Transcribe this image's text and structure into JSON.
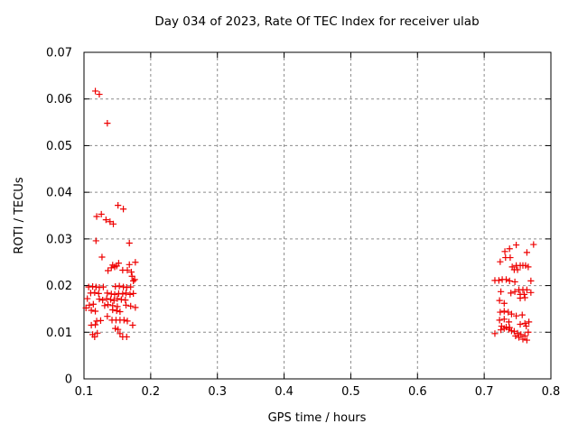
{
  "figure": {
    "background": "#ffffff",
    "axis_color": "#000000",
    "grid_color": "#8c8c8c",
    "marker_color": "#ee0000"
  },
  "chart_data": {
    "type": "scatter",
    "title": "Day 034 of 2023, Rate Of TEC Index for receiver ulab",
    "xlabel": "GPS time / hours",
    "ylabel": "ROTI / TECUs",
    "xlim": [
      0.1,
      0.8
    ],
    "ylim": [
      0,
      0.07
    ],
    "xtick_values": [
      0.1,
      0.2,
      0.3,
      0.4,
      0.5,
      0.6,
      0.7,
      0.8
    ],
    "xtick_labels": [
      "0.1",
      "0.2",
      "0.3",
      "0.4",
      "0.5",
      "0.6",
      "0.7",
      "0.8"
    ],
    "ytick_values": [
      0,
      0.01,
      0.02,
      0.03,
      0.04,
      0.05,
      0.06,
      0.07
    ],
    "ytick_labels": [
      "0",
      "0.01",
      "0.02",
      "0.03",
      "0.04",
      "0.05",
      "0.06",
      "0.07"
    ],
    "grid": true,
    "grid_style": "dashed",
    "legend_position": "none",
    "marker": "plus",
    "series": [
      {
        "name": "ROTI",
        "points": [
          [
            0.117,
            0.0617
          ],
          [
            0.123,
            0.061
          ],
          [
            0.135,
            0.0548
          ],
          [
            0.151,
            0.0372
          ],
          [
            0.159,
            0.0364
          ],
          [
            0.126,
            0.0353
          ],
          [
            0.119,
            0.0348
          ],
          [
            0.133,
            0.0341
          ],
          [
            0.139,
            0.0337
          ],
          [
            0.144,
            0.0332
          ],
          [
            0.118,
            0.0296
          ],
          [
            0.168,
            0.0291
          ],
          [
            0.127,
            0.0261
          ],
          [
            0.152,
            0.0248
          ],
          [
            0.143,
            0.0244
          ],
          [
            0.177,
            0.025
          ],
          [
            0.168,
            0.0245
          ],
          [
            0.141,
            0.0238
          ],
          [
            0.149,
            0.0242
          ],
          [
            0.136,
            0.0232
          ],
          [
            0.146,
            0.024
          ],
          [
            0.158,
            0.0233
          ],
          [
            0.165,
            0.0233
          ],
          [
            0.171,
            0.0229
          ],
          [
            0.172,
            0.022
          ],
          [
            0.176,
            0.0213
          ],
          [
            0.174,
            0.021
          ],
          [
            0.107,
            0.0197
          ],
          [
            0.113,
            0.0198
          ],
          [
            0.118,
            0.0197
          ],
          [
            0.123,
            0.0196
          ],
          [
            0.129,
            0.0197
          ],
          [
            0.147,
            0.0198
          ],
          [
            0.153,
            0.0199
          ],
          [
            0.159,
            0.0197
          ],
          [
            0.164,
            0.0196
          ],
          [
            0.17,
            0.0197
          ],
          [
            0.11,
            0.0184
          ],
          [
            0.116,
            0.0185
          ],
          [
            0.122,
            0.0183
          ],
          [
            0.135,
            0.0184
          ],
          [
            0.141,
            0.0182
          ],
          [
            0.146,
            0.0181
          ],
          [
            0.152,
            0.0183
          ],
          [
            0.158,
            0.0182
          ],
          [
            0.163,
            0.0184
          ],
          [
            0.169,
            0.0181
          ],
          [
            0.174,
            0.0183
          ],
          [
            0.105,
            0.0172
          ],
          [
            0.123,
            0.0171
          ],
          [
            0.128,
            0.0169
          ],
          [
            0.134,
            0.0172
          ],
          [
            0.14,
            0.017
          ],
          [
            0.145,
            0.0168
          ],
          [
            0.15,
            0.0172
          ],
          [
            0.156,
            0.017
          ],
          [
            0.162,
            0.0169
          ],
          [
            0.108,
            0.0158
          ],
          [
            0.114,
            0.016
          ],
          [
            0.131,
            0.0157
          ],
          [
            0.136,
            0.0159
          ],
          [
            0.143,
            0.0157
          ],
          [
            0.15,
            0.0155
          ],
          [
            0.163,
            0.0158
          ],
          [
            0.17,
            0.0156
          ],
          [
            0.177,
            0.0153
          ],
          [
            0.103,
            0.0152
          ],
          [
            0.111,
            0.0147
          ],
          [
            0.117,
            0.0145
          ],
          [
            0.143,
            0.0148
          ],
          [
            0.149,
            0.0146
          ],
          [
            0.154,
            0.0144
          ],
          [
            0.135,
            0.0134
          ],
          [
            0.119,
            0.0124
          ],
          [
            0.125,
            0.0125
          ],
          [
            0.142,
            0.0126
          ],
          [
            0.148,
            0.0126
          ],
          [
            0.154,
            0.0126
          ],
          [
            0.16,
            0.0126
          ],
          [
            0.165,
            0.0124
          ],
          [
            0.173,
            0.0115
          ],
          [
            0.111,
            0.0115
          ],
          [
            0.117,
            0.0116
          ],
          [
            0.147,
            0.0108
          ],
          [
            0.151,
            0.0106
          ],
          [
            0.113,
            0.0095
          ],
          [
            0.12,
            0.0098
          ],
          [
            0.154,
            0.0097
          ],
          [
            0.116,
            0.009
          ],
          [
            0.158,
            0.009
          ],
          [
            0.164,
            0.009
          ],
          [
            0.748,
            0.0287
          ],
          [
            0.774,
            0.0288
          ],
          [
            0.738,
            0.0279
          ],
          [
            0.731,
            0.0273
          ],
          [
            0.764,
            0.0271
          ],
          [
            0.732,
            0.026
          ],
          [
            0.739,
            0.026
          ],
          [
            0.724,
            0.0251
          ],
          [
            0.742,
            0.024
          ],
          [
            0.748,
            0.0243
          ],
          [
            0.754,
            0.0243
          ],
          [
            0.758,
            0.0243
          ],
          [
            0.762,
            0.0243
          ],
          [
            0.766,
            0.024
          ],
          [
            0.745,
            0.0234
          ],
          [
            0.75,
            0.0234
          ],
          [
            0.716,
            0.0211
          ],
          [
            0.722,
            0.0211
          ],
          [
            0.727,
            0.0213
          ],
          [
            0.733,
            0.0213
          ],
          [
            0.738,
            0.021
          ],
          [
            0.746,
            0.0208
          ],
          [
            0.77,
            0.021
          ],
          [
            0.725,
            0.0187
          ],
          [
            0.74,
            0.0184
          ],
          [
            0.746,
            0.0187
          ],
          [
            0.752,
            0.0191
          ],
          [
            0.758,
            0.0191
          ],
          [
            0.764,
            0.0191
          ],
          [
            0.754,
            0.0181
          ],
          [
            0.76,
            0.0181
          ],
          [
            0.77,
            0.0185
          ],
          [
            0.723,
            0.0168
          ],
          [
            0.73,
            0.0162
          ],
          [
            0.754,
            0.0173
          ],
          [
            0.761,
            0.0174
          ],
          [
            0.724,
            0.0143
          ],
          [
            0.73,
            0.0145
          ],
          [
            0.736,
            0.0143
          ],
          [
            0.741,
            0.0139
          ],
          [
            0.748,
            0.0135
          ],
          [
            0.757,
            0.0137
          ],
          [
            0.723,
            0.0126
          ],
          [
            0.73,
            0.0128
          ],
          [
            0.737,
            0.0122
          ],
          [
            0.754,
            0.0117
          ],
          [
            0.761,
            0.0119
          ],
          [
            0.767,
            0.0122
          ],
          [
            0.726,
            0.0113
          ],
          [
            0.733,
            0.0111
          ],
          [
            0.738,
            0.011
          ],
          [
            0.763,
            0.0113
          ],
          [
            0.725,
            0.0105
          ],
          [
            0.73,
            0.0108
          ],
          [
            0.737,
            0.0106
          ],
          [
            0.741,
            0.0103
          ],
          [
            0.745,
            0.0102
          ],
          [
            0.766,
            0.01
          ],
          [
            0.716,
            0.0097
          ],
          [
            0.75,
            0.0098
          ],
          [
            0.755,
            0.0095
          ],
          [
            0.761,
            0.0092
          ],
          [
            0.747,
            0.0092
          ],
          [
            0.752,
            0.0089
          ],
          [
            0.758,
            0.0085
          ],
          [
            0.764,
            0.0083
          ]
        ]
      }
    ]
  }
}
